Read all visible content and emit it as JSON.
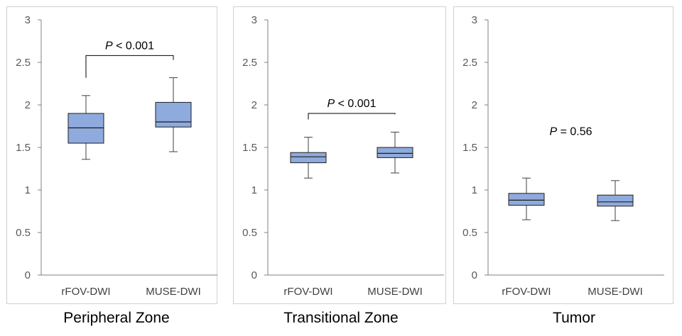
{
  "chart_data": [
    {
      "type": "box",
      "title": "Peripheral Zone",
      "categories": [
        "rFOV-DWI",
        "MUSE-DWI"
      ],
      "ylim": [
        0,
        3
      ],
      "yticks": [
        "0",
        "0.5",
        "1",
        "1.5",
        "2",
        "2.5",
        "3"
      ],
      "series": [
        {
          "name": "rFOV-DWI",
          "min": 1.36,
          "q1": 1.55,
          "median": 1.73,
          "q3": 1.9,
          "max": 2.11
        },
        {
          "name": "MUSE-DWI",
          "min": 1.45,
          "q1": 1.74,
          "median": 1.8,
          "q3": 2.03,
          "max": 2.32
        }
      ],
      "annotation": {
        "p_symbol": "P",
        "p_text": " < 0.001",
        "bracket": true,
        "level": 2.58
      }
    },
    {
      "type": "box",
      "title": "Transitional Zone",
      "categories": [
        "rFOV-DWI",
        "MUSE-DWI"
      ],
      "ylim": [
        0,
        3
      ],
      "yticks": [
        "0",
        "0.5",
        "1",
        "1.5",
        "2",
        "2.5",
        "3"
      ],
      "series": [
        {
          "name": "rFOV-DWI",
          "min": 1.14,
          "q1": 1.32,
          "median": 1.39,
          "q3": 1.44,
          "max": 1.62
        },
        {
          "name": "MUSE-DWI",
          "min": 1.2,
          "q1": 1.38,
          "median": 1.43,
          "q3": 1.5,
          "max": 1.68
        }
      ],
      "annotation": {
        "p_symbol": "P",
        "p_text": " < 0.001",
        "bracket": true,
        "level": 1.9
      }
    },
    {
      "type": "box",
      "title": "Tumor",
      "categories": [
        "rFOV-DWI",
        "MUSE-DWI"
      ],
      "ylim": [
        0,
        3
      ],
      "yticks": [
        "0",
        "0.5",
        "1",
        "1.5",
        "2",
        "2.5",
        "3"
      ],
      "series": [
        {
          "name": "rFOV-DWI",
          "min": 0.65,
          "q1": 0.82,
          "median": 0.88,
          "q3": 0.96,
          "max": 1.14
        },
        {
          "name": "MUSE-DWI",
          "min": 0.64,
          "q1": 0.81,
          "median": 0.86,
          "q3": 0.94,
          "max": 1.11
        }
      ],
      "annotation": {
        "p_symbol": "P",
        "p_text": " = 0.56",
        "bracket": false,
        "level": 1.57
      }
    }
  ],
  "colors": {
    "box_fill": "#8faadc",
    "box_stroke": "#1f1f1f",
    "axis": "#808080",
    "whisker": "#404040"
  }
}
